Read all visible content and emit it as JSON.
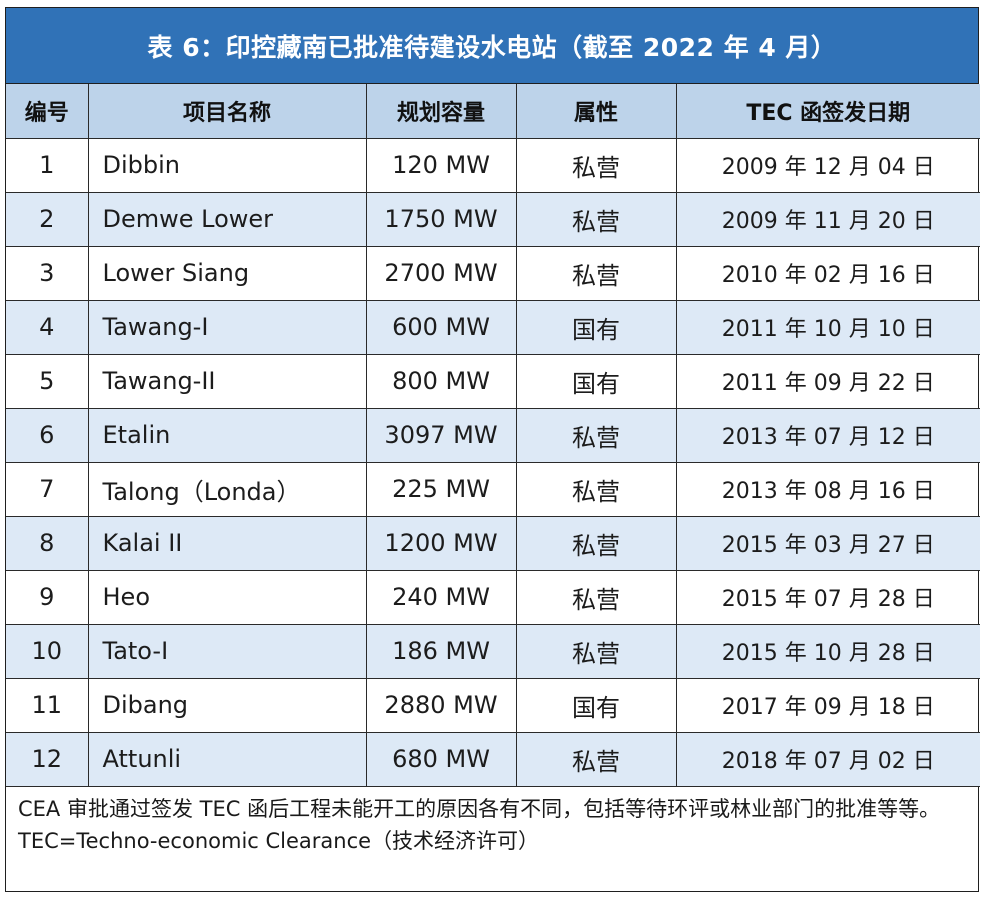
{
  "title": "表 6：印控藏南已批准待建设水电站（截至 2022 年 4 月）",
  "columns": [
    "编号",
    "项目名称",
    "规划容量",
    "属性",
    "TEC 函签发日期"
  ],
  "rows": [
    {
      "no": "1",
      "name": "Dibbin",
      "capacity": "120 MW",
      "attr": "私营",
      "date": "2009 年 12 月 04 日"
    },
    {
      "no": "2",
      "name": "Demwe Lower",
      "capacity": "1750 MW",
      "attr": "私营",
      "date": "2009 年 11 月 20 日"
    },
    {
      "no": "3",
      "name": "Lower Siang",
      "capacity": "2700 MW",
      "attr": "私营",
      "date": "2010 年 02 月 16 日"
    },
    {
      "no": "4",
      "name": "Tawang-I",
      "capacity": "600 MW",
      "attr": "国有",
      "date": "2011 年 10 月 10 日"
    },
    {
      "no": "5",
      "name": "Tawang-II",
      "capacity": "800 MW",
      "attr": "国有",
      "date": "2011 年 09 月 22 日"
    },
    {
      "no": "6",
      "name": "Etalin",
      "capacity": "3097 MW",
      "attr": "私营",
      "date": "2013 年 07 月 12 日"
    },
    {
      "no": "7",
      "name": "Talong（Londa）",
      "capacity": "225 MW",
      "attr": "私营",
      "date": "2013 年 08 月 16 日"
    },
    {
      "no": "8",
      "name": "Kalai II",
      "capacity": "1200 MW",
      "attr": "私营",
      "date": "2015 年 03 月 27 日"
    },
    {
      "no": "9",
      "name": "Heo",
      "capacity": "240 MW",
      "attr": "私营",
      "date": "2015 年 07 月 28 日"
    },
    {
      "no": "10",
      "name": "Tato-I",
      "capacity": "186 MW",
      "attr": "私营",
      "date": "2015 年 10 月 28 日"
    },
    {
      "no": "11",
      "name": "Dibang",
      "capacity": "2880 MW",
      "attr": "国有",
      "date": "2017 年 09 月 18 日"
    },
    {
      "no": "12",
      "name": "Attunli",
      "capacity": "680 MW",
      "attr": "私营",
      "date": "2018 年 07 月 02 日"
    }
  ],
  "notes": [
    "CEA 审批通过签发 TEC 函后工程未能开工的原因各有不同，包括等待环评或林业部门的批准等等。",
    "TEC=Techno-economic Clearance（技术经济许可）"
  ],
  "colors": {
    "title_bg": "#3072b7",
    "header_bg": "#bdd3ea",
    "stripe_bg": "#dde9f6"
  }
}
